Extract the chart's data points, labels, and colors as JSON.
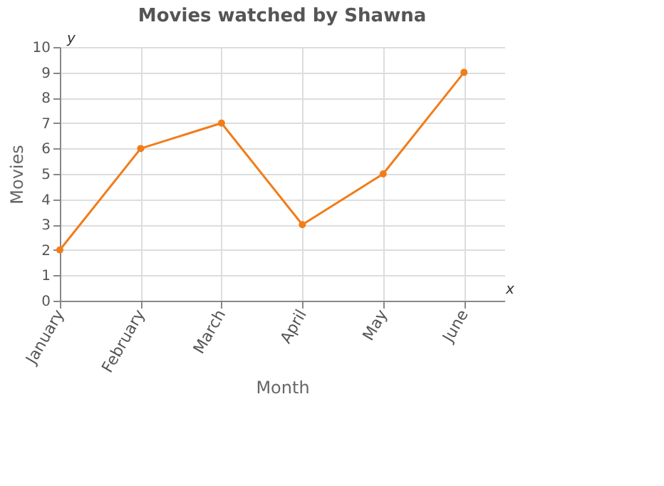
{
  "chart_data": {
    "type": "line",
    "title": "Movies watched by Shawna",
    "xlabel": "Month",
    "ylabel": "Movies",
    "categories": [
      "January",
      "February",
      "March",
      "April",
      "May",
      "June"
    ],
    "series": [
      {
        "color": "#f07d1a",
        "values": [
          2,
          6,
          7,
          3,
          5,
          9
        ]
      }
    ],
    "ylim": [
      0,
      10
    ],
    "yticks": [
      0,
      1,
      2,
      3,
      4,
      5,
      6,
      7,
      8,
      9,
      10
    ],
    "grid": true,
    "marker": "circle",
    "line_style": "solid",
    "annotations": [
      "y",
      "x"
    ]
  }
}
